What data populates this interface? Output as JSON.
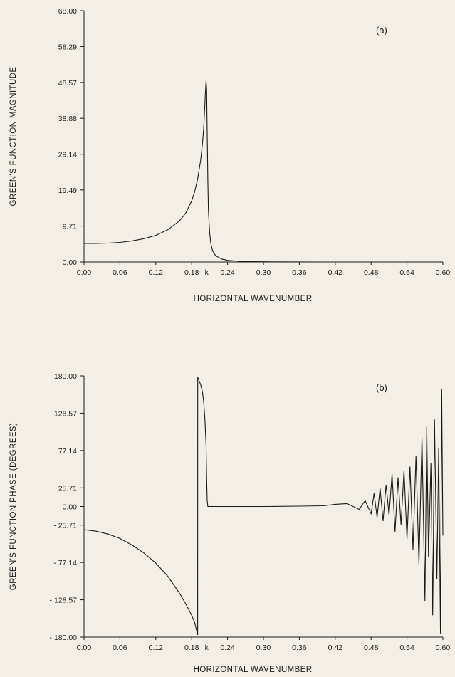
{
  "chart_data": [
    {
      "type": "line",
      "panel_label": "(a)",
      "xlabel": "HORIZONTAL  WAVENUMBER",
      "ylabel": "GREEN'S FUNCTION MAGNITUDE",
      "xlim": [
        0.0,
        0.6
      ],
      "ylim": [
        0.0,
        68.0
      ],
      "x_ticks": [
        "0.00",
        "0.06",
        "0.12",
        "0.18",
        "k",
        "0.24",
        "0.30",
        "0.36",
        "0.42",
        "0.48",
        "0.54",
        "0.60"
      ],
      "x_tick_values": [
        0.0,
        0.06,
        0.12,
        0.18,
        0.205,
        0.24,
        0.3,
        0.36,
        0.42,
        0.48,
        0.54,
        0.6
      ],
      "y_ticks": [
        "68.00",
        "58.29",
        "48.57",
        "38.88",
        "29.14",
        "19.49",
        "9.71",
        "0.00"
      ],
      "y_tick_values": [
        68.0,
        58.29,
        48.57,
        38.88,
        29.14,
        19.49,
        9.71,
        0.0
      ],
      "series": [
        {
          "x": [
            0.0,
            0.02,
            0.04,
            0.06,
            0.08,
            0.1,
            0.12,
            0.14,
            0.16,
            0.17,
            0.18,
            0.185,
            0.19,
            0.195,
            0.198,
            0.2,
            0.201,
            0.202,
            0.203,
            0.204,
            0.205,
            0.206,
            0.207,
            0.208,
            0.21,
            0.212,
            0.215,
            0.22,
            0.23,
            0.24,
            0.26,
            0.28,
            0.3,
            0.35,
            0.4,
            0.5,
            0.6
          ],
          "y": [
            5.0,
            5.0,
            5.1,
            5.3,
            5.7,
            6.3,
            7.2,
            8.7,
            11.2,
            13.2,
            16.5,
            19.0,
            22.5,
            27.5,
            32.0,
            36.0,
            39.0,
            42.5,
            46.0,
            49.0,
            47.0,
            35.0,
            22.0,
            14.0,
            8.0,
            5.0,
            3.0,
            1.7,
            0.8,
            0.45,
            0.2,
            0.1,
            0.05,
            0.02,
            0.0,
            0.0,
            0.0
          ]
        }
      ]
    },
    {
      "type": "line",
      "panel_label": "(b)",
      "xlabel": "HORIZONTAL  WAVENUMBER",
      "ylabel": "GREEN'S FUNCTION  PHASE (DEGREES)",
      "xlim": [
        0.0,
        0.6
      ],
      "ylim": [
        -180.0,
        180.0
      ],
      "x_ticks": [
        "0.00",
        "0.06",
        "0.12",
        "0.18",
        "k",
        "0.24",
        "0.30",
        "0.36",
        "0.42",
        "0.48",
        "0.54",
        "0.60"
      ],
      "x_tick_values": [
        0.0,
        0.06,
        0.12,
        0.18,
        0.205,
        0.24,
        0.3,
        0.36,
        0.42,
        0.48,
        0.54,
        0.6
      ],
      "y_ticks": [
        "180.00",
        "128.57",
        "77.14",
        "25.71",
        "0.00",
        "- 25.71",
        "- 77.14",
        "- 128.57",
        "- 180.00"
      ],
      "y_tick_values": [
        180.0,
        128.57,
        77.14,
        25.71,
        0.0,
        -25.71,
        -77.14,
        -128.57,
        -180.0
      ],
      "series": [
        {
          "x": [
            0.0,
            0.02,
            0.04,
            0.06,
            0.08,
            0.1,
            0.12,
            0.14,
            0.16,
            0.17,
            0.18,
            0.185,
            0.19,
            0.1901,
            0.192,
            0.195,
            0.198,
            0.2,
            0.202,
            0.204,
            0.205,
            0.206,
            0.207,
            0.21,
            0.24,
            0.3,
            0.36,
            0.4,
            0.42,
            0.44,
            0.46,
            0.47,
            0.48,
            0.485,
            0.49,
            0.495,
            0.5,
            0.505,
            0.51,
            0.515,
            0.52,
            0.525,
            0.53,
            0.535,
            0.54,
            0.545,
            0.55,
            0.555,
            0.56,
            0.565,
            0.57,
            0.573,
            0.576,
            0.58,
            0.583,
            0.586,
            0.59,
            0.593,
            0.596,
            0.598,
            0.6
          ],
          "y": [
            -32,
            -34,
            -38,
            -44,
            -53,
            -64,
            -78,
            -96,
            -120,
            -134,
            -150,
            -160,
            -177,
            178,
            174,
            168,
            158,
            145,
            122,
            85,
            40,
            8,
            0,
            0,
            0,
            0,
            0.5,
            1,
            3,
            4,
            -4,
            8,
            -10,
            18,
            -15,
            25,
            -20,
            30,
            -12,
            45,
            -35,
            40,
            -25,
            50,
            -45,
            55,
            -60,
            70,
            -80,
            95,
            -130,
            110,
            -70,
            60,
            -150,
            120,
            -100,
            80,
            -175,
            162,
            -40
          ]
        }
      ]
    }
  ]
}
